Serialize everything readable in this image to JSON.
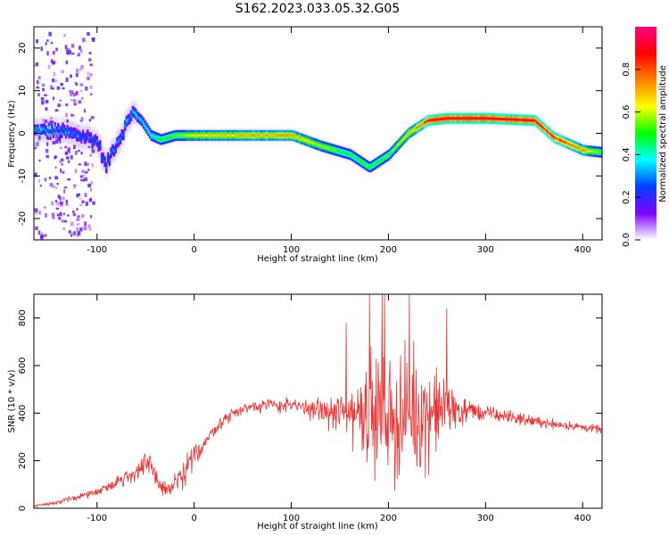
{
  "title": "S162.2023.033.05.32.G05",
  "chart_data": [
    {
      "type": "heatmap",
      "name": "spectrogram",
      "xlabel": "Height of straight line (km)",
      "ylabel": "Frequency (Hz)",
      "xlim": [
        -165,
        420
      ],
      "ylim": [
        -25,
        25
      ],
      "xticks": [
        -100,
        0,
        100,
        200,
        300,
        400
      ],
      "yticks": [
        -20,
        -10,
        0,
        10,
        20
      ],
      "colorbar": {
        "label": "Normalized spectral amplitude",
        "range": [
          0,
          1
        ],
        "ticks": [
          0.0,
          0.2,
          0.4,
          0.6,
          0.8
        ],
        "colors": [
          "#ffffff",
          "#8000ff",
          "#0040ff",
          "#00ffff",
          "#00ff00",
          "#ffff00",
          "#ff8000",
          "#ff0000",
          "#ff0080"
        ]
      },
      "ridge_frequency_hz": {
        "x": [
          -165,
          -140,
          -120,
          -110,
          -100,
          -92,
          -85,
          -75,
          -65,
          -55,
          -45,
          -35,
          -20,
          0,
          50,
          100,
          130,
          160,
          180,
          200,
          220,
          240,
          260,
          300,
          350,
          370,
          390,
          400,
          420
        ],
        "y": [
          0.5,
          0.5,
          -0.5,
          -1,
          -2,
          -8,
          -4,
          0,
          5,
          3,
          -0.5,
          -1.5,
          -0.5,
          -0.5,
          -0.5,
          -0.5,
          -3,
          -5,
          -8,
          -5,
          0,
          3,
          3.5,
          3.5,
          3,
          -1,
          -3,
          -4,
          -4.5
        ]
      },
      "ridge_amplitude": {
        "x": [
          -165,
          -120,
          -100,
          -70,
          -50,
          0,
          50,
          100,
          150,
          200,
          230,
          250,
          300,
          350,
          380,
          400,
          420
        ],
        "y": [
          0.35,
          0.3,
          0.25,
          0.3,
          0.4,
          0.65,
          0.7,
          0.7,
          0.5,
          0.5,
          0.75,
          0.9,
          0.92,
          0.9,
          0.8,
          0.7,
          0.5
        ]
      }
    },
    {
      "type": "line",
      "name": "snr",
      "xlabel": "Height of straight line (km)",
      "ylabel": "SNR (10 * v/v)",
      "xlim": [
        -165,
        420
      ],
      "ylim": [
        0,
        900
      ],
      "xticks": [
        -100,
        0,
        100,
        200,
        300,
        400
      ],
      "yticks": [
        0,
        200,
        400,
        600,
        800
      ],
      "color": "#ee3333",
      "envelope": {
        "x": [
          -165,
          -140,
          -100,
          -80,
          -60,
          -45,
          -35,
          -25,
          -10,
          0,
          10,
          20,
          40,
          60,
          80,
          100,
          120,
          140,
          160,
          180,
          200,
          220,
          240,
          260,
          280,
          300,
          330,
          360,
          390,
          420
        ],
        "mean": [
          10,
          25,
          70,
          110,
          150,
          190,
          90,
          80,
          140,
          220,
          270,
          330,
          400,
          430,
          435,
          430,
          420,
          400,
          400,
          420,
          380,
          380,
          400,
          420,
          410,
          400,
          380,
          360,
          345,
          330
        ],
        "amp": [
          5,
          8,
          15,
          20,
          40,
          60,
          40,
          30,
          60,
          50,
          30,
          25,
          25,
          25,
          25,
          30,
          40,
          55,
          120,
          200,
          250,
          230,
          200,
          120,
          50,
          30,
          25,
          20,
          18,
          15
        ]
      }
    }
  ]
}
